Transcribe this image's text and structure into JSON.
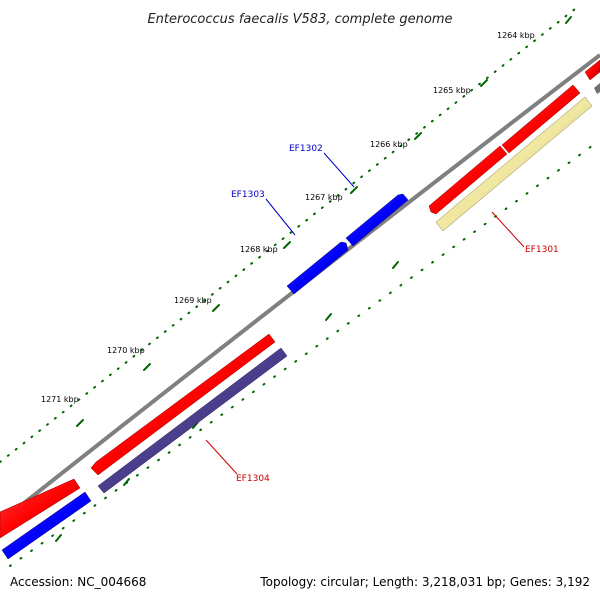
{
  "title": "Enterococcus faecalis V583, complete genome",
  "footer": {
    "accession": "Accession: NC_004668",
    "topology": "Topology: circular; Length: 3,218,031 bp; Genes: 3,192"
  },
  "ticks": [
    "1264 kbp",
    "1265 kbp",
    "1266 kbp",
    "1267 kbp",
    "1268 kbp",
    "1269 kbp",
    "1270 kbp",
    "1271 kbp"
  ],
  "genes": [
    {
      "name": "EF1301",
      "color": "#cc0000"
    },
    {
      "name": "EF1302",
      "color": "#0000cc"
    },
    {
      "name": "EF1303",
      "color": "#0000cc"
    },
    {
      "name": "EF1304",
      "color": "#cc0000"
    }
  ],
  "colors": {
    "backbone": "#808080",
    "forward_feature": "#ff0000",
    "reverse_feature": "#0000ff",
    "cog_yellow": "#f0e8a0",
    "cog_purple": "#4a3f8c",
    "tick": "#006600"
  }
}
